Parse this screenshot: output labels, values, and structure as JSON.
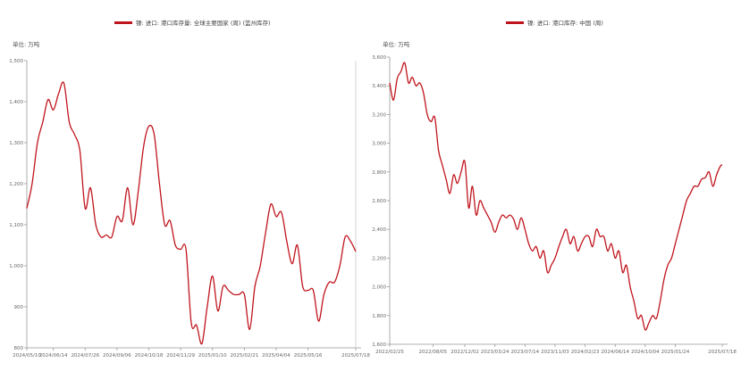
{
  "charts": [
    {
      "id": "left",
      "legend": "镍: 进口: 港口库存量: 全球主要国家 (周) (篮州库存)",
      "unit": "单位: 万吨"
    },
    {
      "id": "right",
      "legend": "镍: 进口: 港口库存: 中国 (周)",
      "unit": "单位: 万吨"
    }
  ],
  "chart_data": [
    {
      "type": "line",
      "series": [
        {
          "name": "镍: 进口: 港口库存量: 全球主要国家 (周) (篮州库存)",
          "color": "#c0141c"
        }
      ],
      "ylim": [
        800,
        1500
      ],
      "yticks": [
        "800",
        "900",
        "1,000",
        "1,100",
        "1,200",
        "1,300",
        "1,400",
        "1,500"
      ],
      "xlim": [
        "2024-05-10",
        "2025-07-18"
      ],
      "xticks": [
        "2024/05/10",
        "2024/06/14",
        "2024/07/26",
        "2024/09/06",
        "2024/10/18",
        "2024/11/29",
        "2025/01/10",
        "2025/02/21",
        "2025/04/04",
        "2025/05/16",
        "2025/07/18"
      ],
      "points": [
        [
          "2024-05-10",
          1140
        ],
        [
          "2024-05-17",
          1200
        ],
        [
          "2024-05-24",
          1300
        ],
        [
          "2024-05-31",
          1350
        ],
        [
          "2024-06-07",
          1405
        ],
        [
          "2024-06-14",
          1380
        ],
        [
          "2024-06-21",
          1420
        ],
        [
          "2024-06-28",
          1445
        ],
        [
          "2024-07-05",
          1350
        ],
        [
          "2024-07-12",
          1320
        ],
        [
          "2024-07-19",
          1280
        ],
        [
          "2024-07-26",
          1140
        ],
        [
          "2024-08-02",
          1190
        ],
        [
          "2024-08-09",
          1100
        ],
        [
          "2024-08-16",
          1070
        ],
        [
          "2024-08-23",
          1075
        ],
        [
          "2024-08-30",
          1070
        ],
        [
          "2024-09-06",
          1120
        ],
        [
          "2024-09-13",
          1110
        ],
        [
          "2024-09-20",
          1190
        ],
        [
          "2024-09-27",
          1100
        ],
        [
          "2024-10-04",
          1180
        ],
        [
          "2024-10-11",
          1290
        ],
        [
          "2024-10-18",
          1340
        ],
        [
          "2024-10-25",
          1320
        ],
        [
          "2024-11-01",
          1200
        ],
        [
          "2024-11-08",
          1100
        ],
        [
          "2024-11-15",
          1110
        ],
        [
          "2024-11-22",
          1050
        ],
        [
          "2024-11-29",
          1040
        ],
        [
          "2024-12-06",
          1040
        ],
        [
          "2024-12-13",
          860
        ],
        [
          "2024-12-20",
          855
        ],
        [
          "2024-12-27",
          810
        ],
        [
          "2025-01-03",
          900
        ],
        [
          "2025-01-10",
          975
        ],
        [
          "2025-01-17",
          890
        ],
        [
          "2025-01-24",
          950
        ],
        [
          "2025-01-31",
          940
        ],
        [
          "2025-02-07",
          930
        ],
        [
          "2025-02-14",
          930
        ],
        [
          "2025-02-21",
          930
        ],
        [
          "2025-02-28",
          845
        ],
        [
          "2025-03-07",
          950
        ],
        [
          "2025-03-14",
          1000
        ],
        [
          "2025-03-21",
          1080
        ],
        [
          "2025-03-28",
          1150
        ],
        [
          "2025-04-04",
          1120
        ],
        [
          "2025-04-11",
          1130
        ],
        [
          "2025-04-18",
          1060
        ],
        [
          "2025-04-25",
          1005
        ],
        [
          "2025-05-02",
          1050
        ],
        [
          "2025-05-09",
          950
        ],
        [
          "2025-05-16",
          940
        ],
        [
          "2025-05-23",
          940
        ],
        [
          "2025-05-30",
          865
        ],
        [
          "2025-06-06",
          930
        ],
        [
          "2025-06-13",
          960
        ],
        [
          "2025-06-20",
          960
        ],
        [
          "2025-06-27",
          1000
        ],
        [
          "2025-07-04",
          1070
        ],
        [
          "2025-07-11",
          1060
        ],
        [
          "2025-07-18",
          1035
        ]
      ]
    },
    {
      "type": "line",
      "series": [
        {
          "name": "镍: 进口: 港口库存: 中国 (周)",
          "color": "#c0141c"
        }
      ],
      "ylim": [
        1600,
        3600
      ],
      "yticks": [
        "1,600",
        "1,800",
        "2,000",
        "2,200",
        "2,400",
        "2,600",
        "2,800",
        "3,000",
        "3,200",
        "3,400",
        "3,600"
      ],
      "xlim": [
        "2022-02-25",
        "2025-07-18"
      ],
      "xticks": [
        "2022/02/25",
        "2022/08/05",
        "2022/12/02",
        "2023/03/24",
        "2023/07/14",
        "2023/11/03",
        "2024/02/23",
        "2024/06/14",
        "2024/10/04",
        "2025/01/24",
        "2025/07/18"
      ],
      "points": [
        [
          "2022-02-25",
          3420
        ],
        [
          "2022-03-11",
          3300
        ],
        [
          "2022-03-25",
          3450
        ],
        [
          "2022-04-08",
          3500
        ],
        [
          "2022-04-22",
          3560
        ],
        [
          "2022-05-06",
          3420
        ],
        [
          "2022-05-20",
          3460
        ],
        [
          "2022-06-03",
          3400
        ],
        [
          "2022-06-17",
          3420
        ],
        [
          "2022-07-01",
          3350
        ],
        [
          "2022-07-15",
          3200
        ],
        [
          "2022-07-29",
          3150
        ],
        [
          "2022-08-12",
          3180
        ],
        [
          "2022-08-26",
          2950
        ],
        [
          "2022-09-09",
          2850
        ],
        [
          "2022-09-23",
          2750
        ],
        [
          "2022-10-07",
          2650
        ],
        [
          "2022-10-21",
          2780
        ],
        [
          "2022-11-04",
          2720
        ],
        [
          "2022-11-18",
          2800
        ],
        [
          "2022-12-02",
          2870
        ],
        [
          "2022-12-16",
          2550
        ],
        [
          "2022-12-30",
          2700
        ],
        [
          "2023-01-13",
          2500
        ],
        [
          "2023-01-27",
          2600
        ],
        [
          "2023-02-10",
          2550
        ],
        [
          "2023-02-24",
          2500
        ],
        [
          "2023-03-10",
          2450
        ],
        [
          "2023-03-24",
          2380
        ],
        [
          "2023-04-07",
          2450
        ],
        [
          "2023-04-21",
          2500
        ],
        [
          "2023-05-05",
          2480
        ],
        [
          "2023-05-19",
          2500
        ],
        [
          "2023-06-02",
          2470
        ],
        [
          "2023-06-16",
          2400
        ],
        [
          "2023-06-30",
          2480
        ],
        [
          "2023-07-14",
          2400
        ],
        [
          "2023-07-28",
          2300
        ],
        [
          "2023-08-11",
          2250
        ],
        [
          "2023-08-25",
          2280
        ],
        [
          "2023-09-08",
          2200
        ],
        [
          "2023-09-22",
          2250
        ],
        [
          "2023-10-06",
          2100
        ],
        [
          "2023-10-20",
          2150
        ],
        [
          "2023-11-03",
          2200
        ],
        [
          "2023-11-17",
          2280
        ],
        [
          "2023-12-01",
          2350
        ],
        [
          "2023-12-15",
          2400
        ],
        [
          "2023-12-29",
          2300
        ],
        [
          "2024-01-12",
          2350
        ],
        [
          "2024-01-26",
          2250
        ],
        [
          "2024-02-09",
          2300
        ],
        [
          "2024-02-23",
          2350
        ],
        [
          "2024-03-08",
          2350
        ],
        [
          "2024-03-22",
          2280
        ],
        [
          "2024-04-05",
          2400
        ],
        [
          "2024-04-19",
          2350
        ],
        [
          "2024-05-03",
          2350
        ],
        [
          "2024-05-17",
          2250
        ],
        [
          "2024-05-31",
          2300
        ],
        [
          "2024-06-14",
          2200
        ],
        [
          "2024-06-28",
          2250
        ],
        [
          "2024-07-12",
          2100
        ],
        [
          "2024-07-26",
          2150
        ],
        [
          "2024-08-09",
          2000
        ],
        [
          "2024-08-23",
          1900
        ],
        [
          "2024-09-06",
          1780
        ],
        [
          "2024-09-20",
          1800
        ],
        [
          "2024-10-04",
          1700
        ],
        [
          "2024-10-18",
          1750
        ],
        [
          "2024-11-01",
          1800
        ],
        [
          "2024-11-15",
          1780
        ],
        [
          "2024-11-29",
          1900
        ],
        [
          "2024-12-13",
          2050
        ],
        [
          "2024-12-27",
          2150
        ],
        [
          "2025-01-10",
          2200
        ],
        [
          "2025-01-24",
          2300
        ],
        [
          "2025-02-07",
          2400
        ],
        [
          "2025-02-21",
          2500
        ],
        [
          "2025-03-07",
          2600
        ],
        [
          "2025-03-21",
          2650
        ],
        [
          "2025-04-04",
          2700
        ],
        [
          "2025-04-18",
          2700
        ],
        [
          "2025-05-02",
          2750
        ],
        [
          "2025-05-16",
          2760
        ],
        [
          "2025-05-30",
          2800
        ],
        [
          "2025-06-13",
          2700
        ],
        [
          "2025-06-27",
          2780
        ],
        [
          "2025-07-11",
          2840
        ],
        [
          "2025-07-18",
          2850
        ]
      ]
    }
  ]
}
